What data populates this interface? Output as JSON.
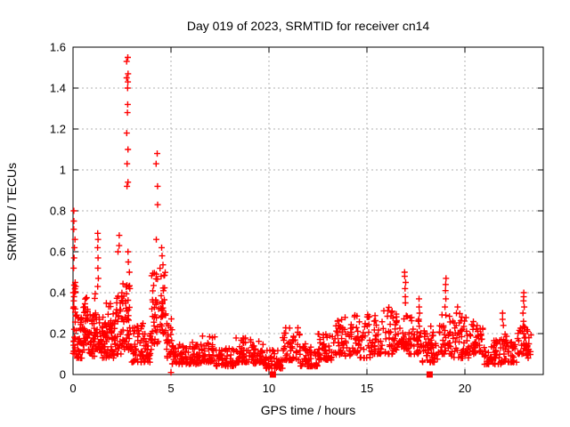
{
  "window": {
    "background": "#ffffff"
  },
  "chart_data": {
    "type": "scatter",
    "title": "Day 019 of 2023, SRMTID for receiver cn14",
    "xlabel": "GPS time / hours",
    "ylabel": "SRMTID / TECUs",
    "xlim": [
      0,
      24
    ],
    "ylim": [
      0,
      1.6
    ],
    "grid": true,
    "legend": "none",
    "colors": {
      "points": "#ff0000",
      "grid": "#b0b0b0",
      "axis": "#000000",
      "text": "#000000"
    },
    "xticks": {
      "values": [
        0,
        5,
        10,
        15,
        20
      ],
      "labels": [
        "0",
        "5",
        "10",
        "15",
        "20"
      ]
    },
    "yticks": {
      "values": [
        0,
        0.2,
        0.4,
        0.6,
        0.8,
        1.0,
        1.2,
        1.4,
        1.6
      ],
      "labels": [
        "0",
        "0.2",
        "0.4",
        "0.6",
        "0.8",
        "1",
        "1.2",
        "1.4",
        "1.6"
      ]
    },
    "series": [
      {
        "name": "srmtid-plus-markers",
        "marker": "plus",
        "color": "#ff0000",
        "bands_format": "[xStart, xEnd, count, yMin, yMax] dense noise bands read from plot",
        "bands": [
          [
            0.0,
            0.2,
            25,
            0.1,
            0.45
          ],
          [
            0.2,
            0.5,
            32,
            0.08,
            0.28
          ],
          [
            0.5,
            0.8,
            36,
            0.12,
            0.38
          ],
          [
            0.8,
            1.1,
            30,
            0.08,
            0.3
          ],
          [
            1.1,
            1.4,
            30,
            0.12,
            0.4
          ],
          [
            1.4,
            1.7,
            30,
            0.08,
            0.3
          ],
          [
            1.7,
            2.1,
            40,
            0.08,
            0.36
          ],
          [
            2.1,
            2.5,
            40,
            0.1,
            0.42
          ],
          [
            2.5,
            3.0,
            48,
            0.12,
            0.46
          ],
          [
            3.0,
            3.6,
            45,
            0.06,
            0.25
          ],
          [
            3.6,
            4.0,
            34,
            0.06,
            0.22
          ],
          [
            4.0,
            4.4,
            36,
            0.15,
            0.5
          ],
          [
            4.4,
            4.75,
            34,
            0.2,
            0.55
          ],
          [
            4.75,
            5.05,
            24,
            0.08,
            0.3
          ],
          [
            5.05,
            6.0,
            55,
            0.05,
            0.15
          ],
          [
            6.0,
            6.6,
            35,
            0.05,
            0.16
          ],
          [
            6.6,
            7.3,
            42,
            0.06,
            0.2
          ],
          [
            7.3,
            8.3,
            56,
            0.04,
            0.13
          ],
          [
            8.3,
            9.0,
            40,
            0.06,
            0.18
          ],
          [
            9.0,
            9.8,
            46,
            0.05,
            0.17
          ],
          [
            9.8,
            10.7,
            50,
            0.03,
            0.12
          ],
          [
            10.7,
            11.6,
            52,
            0.07,
            0.23
          ],
          [
            11.6,
            12.5,
            50,
            0.04,
            0.15
          ],
          [
            12.5,
            13.3,
            46,
            0.07,
            0.2
          ],
          [
            13.3,
            14.3,
            56,
            0.09,
            0.28
          ],
          [
            14.3,
            15.3,
            56,
            0.08,
            0.3
          ],
          [
            15.3,
            16.5,
            68,
            0.1,
            0.33
          ],
          [
            16.5,
            17.1,
            36,
            0.12,
            0.3
          ],
          [
            17.1,
            17.8,
            42,
            0.1,
            0.28
          ],
          [
            17.8,
            18.7,
            52,
            0.06,
            0.24
          ],
          [
            18.7,
            19.3,
            36,
            0.1,
            0.3
          ],
          [
            19.3,
            20.2,
            52,
            0.08,
            0.3
          ],
          [
            20.2,
            21.0,
            46,
            0.1,
            0.27
          ],
          [
            21.0,
            21.9,
            52,
            0.05,
            0.18
          ],
          [
            21.9,
            22.7,
            46,
            0.06,
            0.2
          ],
          [
            22.7,
            23.1,
            26,
            0.1,
            0.26
          ],
          [
            23.1,
            23.4,
            20,
            0.08,
            0.22
          ]
        ],
        "strands_note": "distinct vertical spike strands of + markers",
        "strands": [
          {
            "x": 0.07,
            "ys": [
              0.8,
              0.75,
              0.71,
              0.66,
              0.62,
              0.57,
              0.52,
              0.45,
              0.4,
              0.36,
              0.33
            ]
          },
          {
            "x": 1.28,
            "ys": [
              0.69,
              0.66,
              0.62,
              0.57,
              0.52,
              0.47,
              0.43
            ]
          },
          {
            "x": 2.32,
            "ys": [
              0.68,
              0.63,
              0.6
            ]
          },
          {
            "x": 2.77,
            "ys": [
              1.55,
              1.53,
              1.47,
              1.45,
              1.43,
              1.4,
              1.32,
              1.28,
              1.18,
              1.1,
              1.03,
              0.94,
              0.92
            ]
          },
          {
            "x": 2.84,
            "ys": [
              0.6,
              0.55,
              0.5
            ]
          },
          {
            "x": 4.28,
            "ys": [
              1.08,
              1.03,
              0.92,
              0.83,
              0.66
            ]
          },
          {
            "x": 4.55,
            "ys": [
              0.62,
              0.58
            ]
          },
          {
            "x": 5.0,
            "ys": [
              0.01
            ]
          },
          {
            "x": 16.95,
            "ys": [
              0.5,
              0.48,
              0.45,
              0.42,
              0.38,
              0.35
            ]
          },
          {
            "x": 17.65,
            "ys": [
              0.37,
              0.33,
              0.3,
              0.27
            ]
          },
          {
            "x": 19.0,
            "ys": [
              0.47,
              0.44,
              0.41,
              0.37,
              0.33,
              0.29
            ]
          },
          {
            "x": 19.6,
            "ys": [
              0.33,
              0.3
            ]
          },
          {
            "x": 21.95,
            "ys": [
              0.3,
              0.27,
              0.24
            ]
          },
          {
            "x": 23.0,
            "ys": [
              0.4,
              0.38,
              0.36,
              0.33,
              0.3,
              0.26,
              0.23
            ]
          }
        ]
      },
      {
        "name": "zero-flag-square-markers",
        "marker": "filled-square",
        "color": "#ff0000",
        "points": [
          [
            10.2,
            0
          ],
          [
            18.2,
            0
          ]
        ]
      }
    ]
  }
}
